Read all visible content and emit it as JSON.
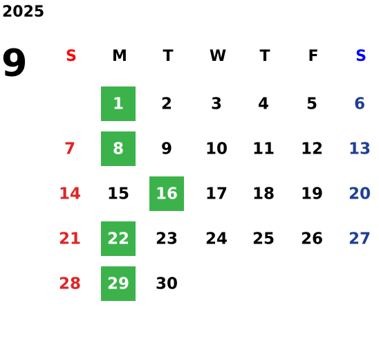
{
  "calendar": {
    "year": "2025",
    "month": "9",
    "weekdays": [
      "S",
      "M",
      "T",
      "W",
      "T",
      "F",
      "S"
    ],
    "weeks": [
      [
        null,
        {
          "day": "1",
          "highlight": true
        },
        {
          "day": "2"
        },
        {
          "day": "3"
        },
        {
          "day": "4"
        },
        {
          "day": "5"
        },
        {
          "day": "6"
        }
      ],
      [
        {
          "day": "7"
        },
        {
          "day": "8",
          "highlight": true
        },
        {
          "day": "9"
        },
        {
          "day": "10"
        },
        {
          "day": "11"
        },
        {
          "day": "12"
        },
        {
          "day": "13"
        }
      ],
      [
        {
          "day": "14"
        },
        {
          "day": "15"
        },
        {
          "day": "16",
          "highlight": true
        },
        {
          "day": "17"
        },
        {
          "day": "18"
        },
        {
          "day": "19"
        },
        {
          "day": "20"
        }
      ],
      [
        {
          "day": "21"
        },
        {
          "day": "22",
          "highlight": true
        },
        {
          "day": "23"
        },
        {
          "day": "24"
        },
        {
          "day": "25"
        },
        {
          "day": "26"
        },
        {
          "day": "27"
        }
      ],
      [
        {
          "day": "28"
        },
        {
          "day": "29",
          "highlight": true
        },
        {
          "day": "30"
        },
        null,
        null,
        null,
        null
      ]
    ]
  }
}
